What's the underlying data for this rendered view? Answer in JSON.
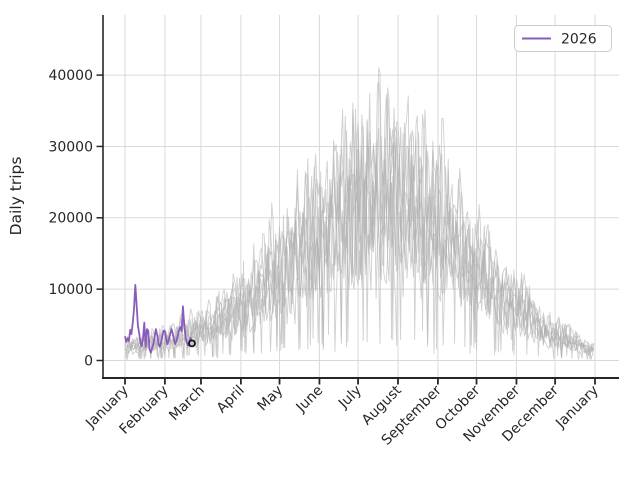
{
  "window": {
    "background": "#ffffff"
  },
  "axes": {
    "ylabel": "Daily trips",
    "y_tick_labels": [
      "0",
      "10000",
      "20000",
      "30000",
      "40000"
    ],
    "x_tick_labels": [
      "January",
      "February",
      "March",
      "April",
      "May",
      "June",
      "July",
      "August",
      "September",
      "October",
      "November",
      "December",
      "January"
    ]
  },
  "legend": {
    "position": "upper right",
    "entries": [
      {
        "label": "2026",
        "color": "#8a5cba"
      }
    ]
  },
  "chart_data": {
    "type": "line",
    "title": "",
    "xlabel": "",
    "ylabel": "Daily trips",
    "grid": true,
    "y_ticks": [
      0,
      10000,
      20000,
      30000,
      40000
    ],
    "ylim": [
      -2400,
      48600
    ],
    "x_tick_labels": [
      "January",
      "February",
      "March",
      "April",
      "May",
      "June",
      "July",
      "August",
      "September",
      "October",
      "November",
      "December",
      "January"
    ],
    "month_start_days": [
      0,
      31,
      59,
      90,
      120,
      151,
      181,
      212,
      243,
      273,
      304,
      334,
      365
    ],
    "series": [
      {
        "name": "2026",
        "color": "#8a5cba",
        "line_width": 1.8,
        "start_day": 0,
        "daily_values": [
          3400,
          2600,
          3100,
          2700,
          4300,
          3700,
          5200,
          7200,
          10600,
          7800,
          4900,
          3800,
          2400,
          2000,
          3100,
          5300,
          1900,
          4400,
          4200,
          1600,
          1100,
          1700,
          2300,
          3300,
          4400,
          3600,
          2300,
          1900,
          2500,
          3400,
          4200,
          4100,
          3000,
          2300,
          2900,
          3700,
          4400,
          3900,
          3000,
          2300,
          2700,
          3500,
          4300,
          4700,
          4100,
          7600,
          5100,
          3300,
          2500,
          2100,
          2700,
          3200,
          2400
        ],
        "end_marker": {
          "day": 52,
          "value": 2400,
          "fill": "#cfc3e0",
          "edge": "#141414"
        }
      }
    ],
    "historical": {
      "description": "previous-year daily trip counts, one noisy line per year",
      "color": "#b0b0b0",
      "opacity": 0.6,
      "line_width": 0.9,
      "monthly_base": [
        2300,
        3300,
        5000,
        8800,
        14500,
        20500,
        26000,
        26800,
        21800,
        14800,
        8600,
        4200,
        1700
      ],
      "noise": {
        "weekly_amp": 0.26,
        "random_amp": 0.62,
        "dip_prob": 0.035,
        "dip_factor": 0.13,
        "min": 120,
        "max": 41500
      },
      "years": [
        {
          "name": "hist-1",
          "scale": 1.04,
          "seed": 3,
          "phase": 0
        },
        {
          "name": "hist-2",
          "scale": 0.94,
          "seed": 7,
          "phase": 2
        },
        {
          "name": "hist-3",
          "scale": 0.86,
          "seed": 12,
          "phase": 4
        },
        {
          "name": "hist-4",
          "scale": 1.0,
          "seed": 21,
          "phase": 1
        },
        {
          "name": "hist-5",
          "scale": 0.76,
          "seed": 34,
          "phase": 3
        },
        {
          "name": "hist-6",
          "scale": 0.9,
          "seed": 47,
          "phase": 5
        },
        {
          "name": "hist-7",
          "scale": 0.66,
          "seed": 58,
          "phase": 6
        },
        {
          "name": "hist-8",
          "scale": 0.8,
          "seed": 71,
          "phase": 2.5
        }
      ]
    }
  },
  "style": {
    "accent": "#8a5cba",
    "historical_color": "#b0b0b0",
    "grid_color": "#d9d9d9",
    "spine_color": "#262626",
    "tick_label_color": "#262626",
    "background": "#ffffff"
  }
}
